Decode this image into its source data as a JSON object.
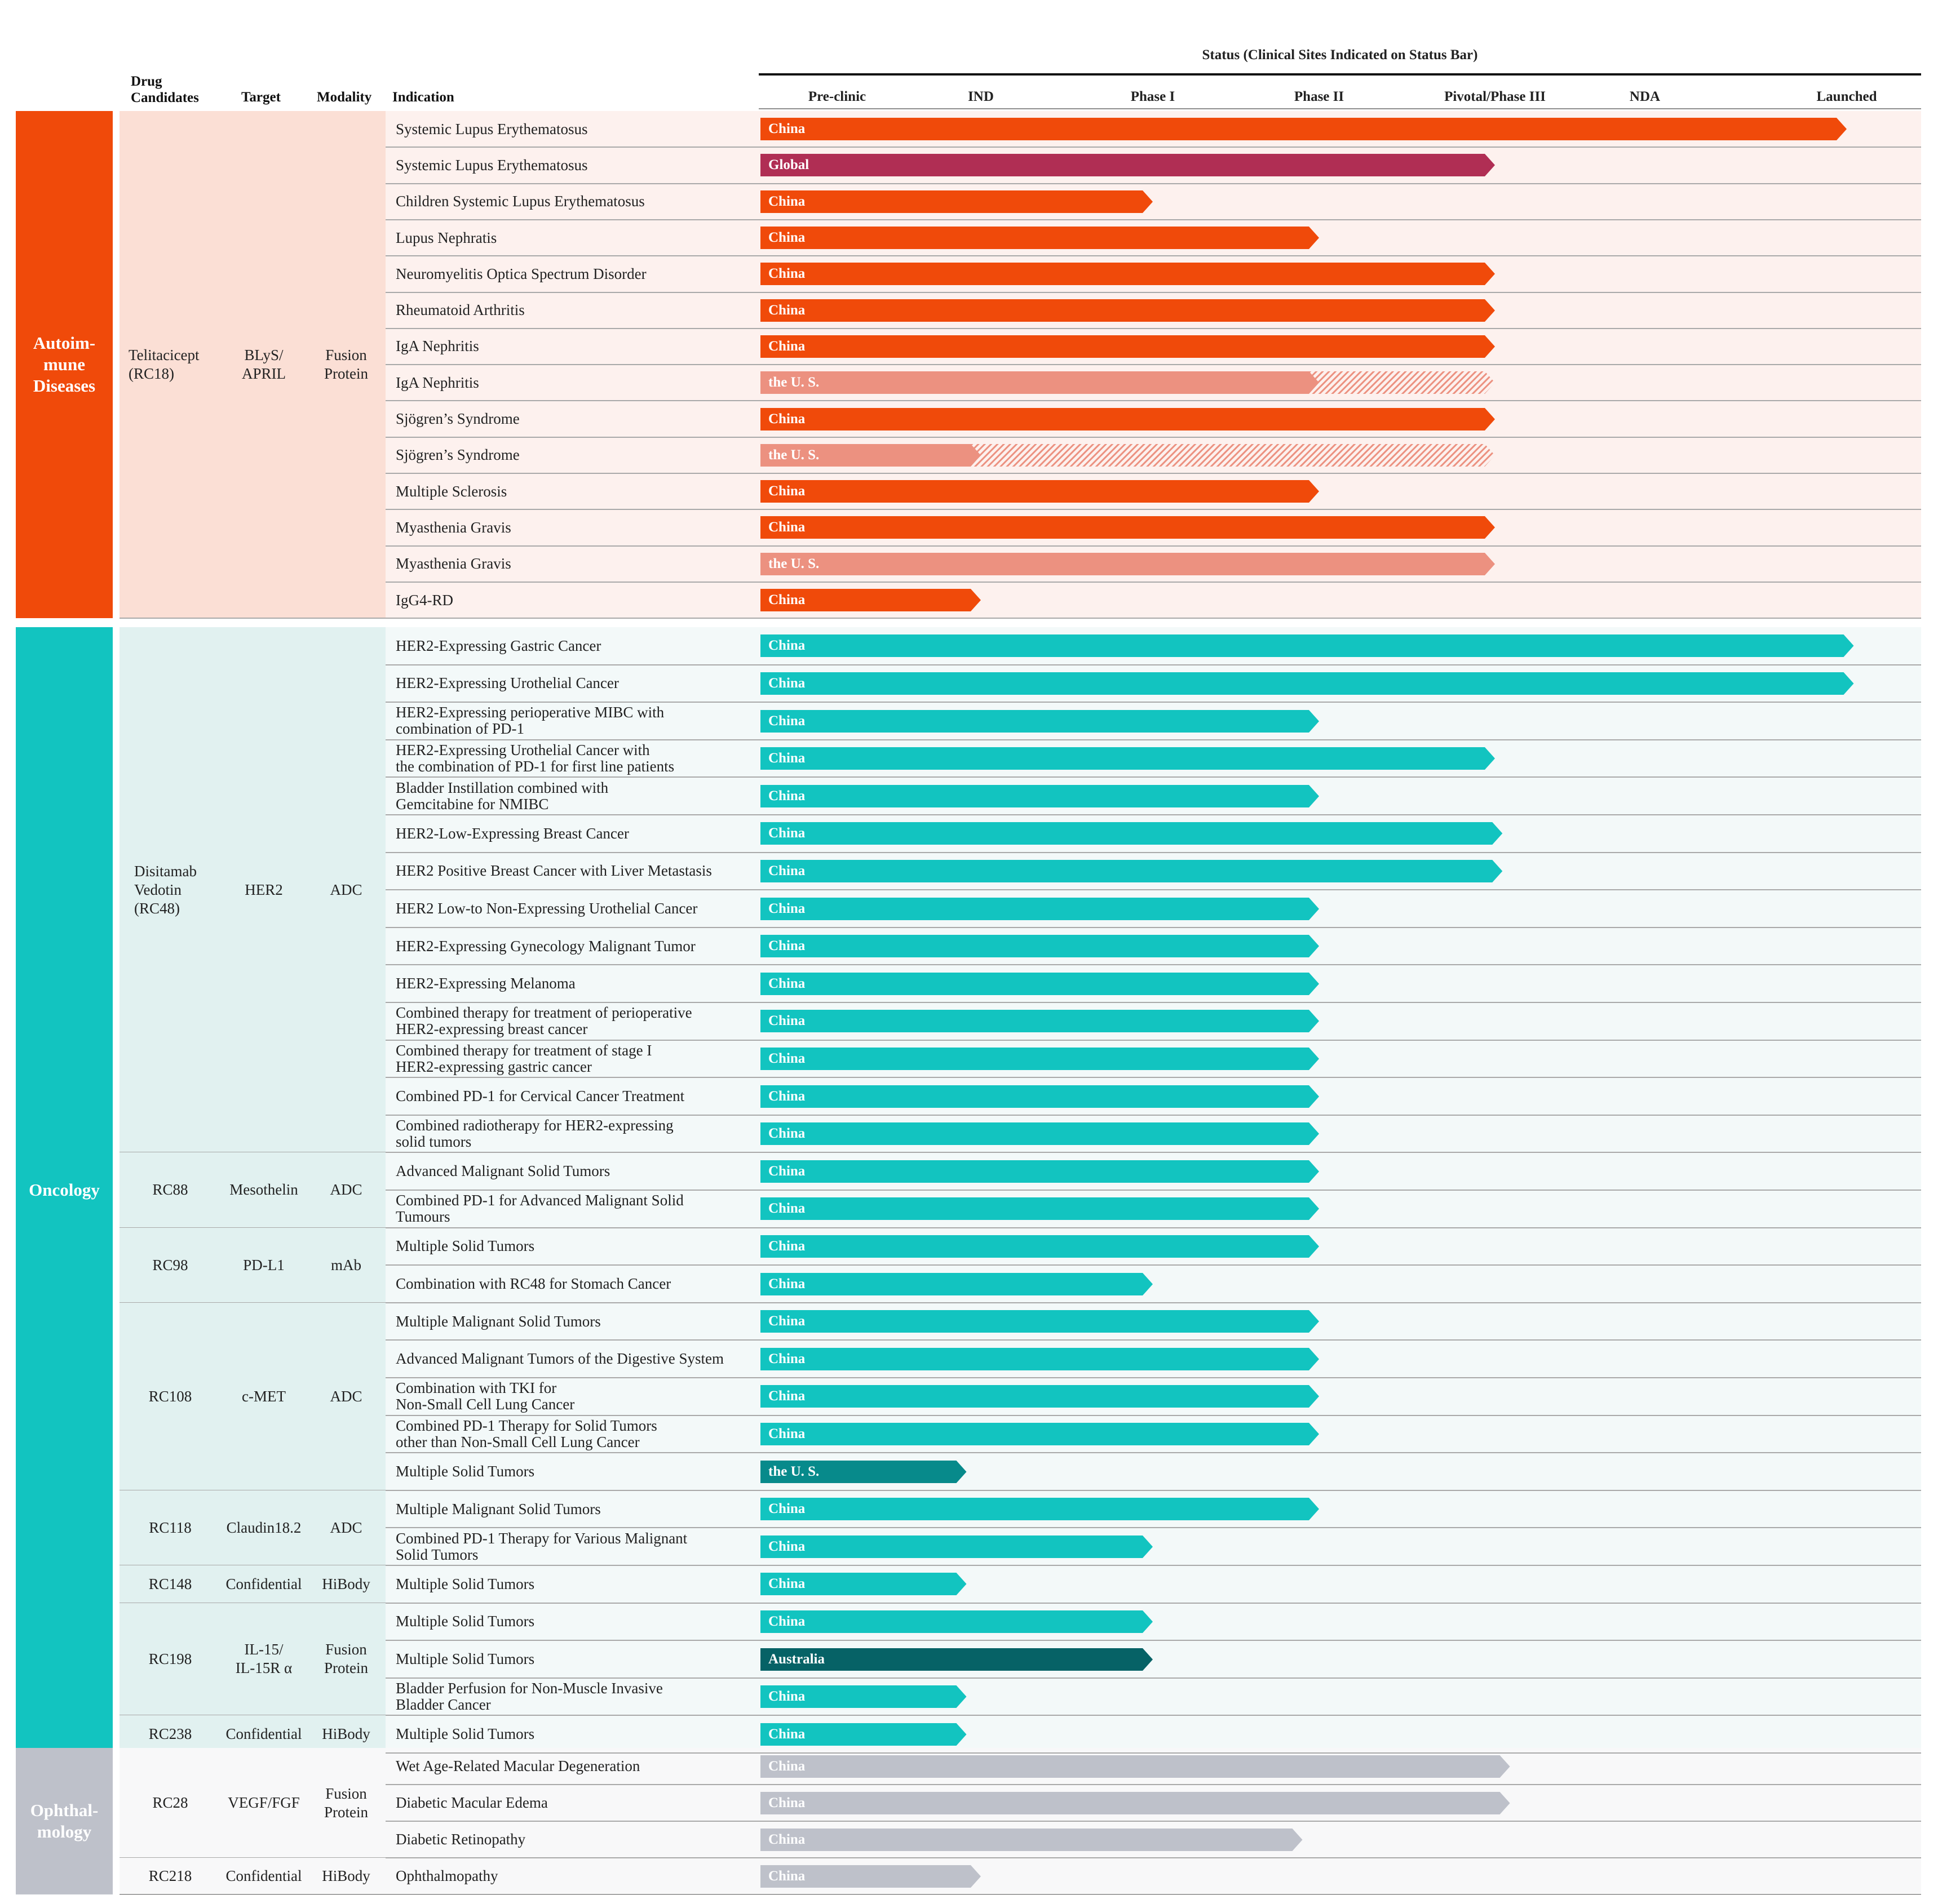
{
  "headers": {
    "drug_candidates": "Drug\nCandidates",
    "target": "Target",
    "modality": "Modality",
    "indication": "Indication",
    "status": "Status (Clinical Sites Indicated on Status Bar)"
  },
  "colors": {
    "autoimmune": "#F04A0A",
    "autoimmune_light": "#EC9180",
    "autoimmune_bg": "#FDF1EE",
    "autoimmune_cell_bg": "#FBDFD5",
    "global": "#B02E54",
    "oncology": "#12C4C0",
    "oncology_dark": "#078A8B",
    "oncology_darkest": "#066266",
    "oncology_bg": "#F3F9F9",
    "oncology_cell_bg": "#E1F1F0",
    "ophthalmology": "#BEC1CA",
    "ophthalmology_bg": "#F8F8F9"
  },
  "chart_data": {
    "type": "bar",
    "stages": [
      "Pre-clinic",
      "IND",
      "Phase I",
      "Phase II",
      "Pivotal/Phase III",
      "NDA",
      "Launched"
    ],
    "categories": [
      {
        "name": "Autoim-\nmune\nDiseases",
        "color": "autoimmune"
      },
      {
        "name": "Oncology",
        "color": "oncology"
      },
      {
        "name": "Ophthal-\nmology",
        "color": "ophthalmology"
      }
    ],
    "drugs": [
      {
        "category": 0,
        "name": "Telitacicept\n(RC18)",
        "target": "BLyS/\nAPRIL",
        "modality": "Fusion\nProtein",
        "rows": [
          0,
          13
        ]
      },
      {
        "category": 1,
        "name": "Disitamab\nVedotin\n(RC48)",
        "target": "HER2",
        "modality": "ADC",
        "rows": [
          14,
          27
        ]
      },
      {
        "category": 1,
        "name": "RC88",
        "target": "Mesothelin",
        "modality": "ADC",
        "rows": [
          28,
          29
        ]
      },
      {
        "category": 1,
        "name": "RC98",
        "target": "PD-L1",
        "modality": "mAb",
        "rows": [
          30,
          31
        ]
      },
      {
        "category": 1,
        "name": "RC108",
        "target": "c-MET",
        "modality": "ADC",
        "rows": [
          32,
          36
        ]
      },
      {
        "category": 1,
        "name": "RC118",
        "target": "Claudin18.2",
        "modality": "ADC",
        "rows": [
          37,
          38
        ]
      },
      {
        "category": 1,
        "name": "RC148",
        "target": "Confidential",
        "modality": "HiBody",
        "rows": [
          39,
          39
        ]
      },
      {
        "category": 1,
        "name": "RC198",
        "target": "IL-15/\nIL-15R α",
        "modality": "Fusion\nProtein",
        "rows": [
          40,
          42
        ]
      },
      {
        "category": 1,
        "name": "RC238",
        "target": "Confidential",
        "modality": "HiBody",
        "rows": [
          43,
          43
        ]
      },
      {
        "category": 2,
        "name": "RC28",
        "target": "VEGF/FGF",
        "modality": "Fusion\nProtein",
        "rows": [
          44,
          46
        ]
      },
      {
        "category": 2,
        "name": "RC218",
        "target": "Confidential",
        "modality": "HiBody",
        "rows": [
          47,
          47
        ]
      }
    ],
    "rows": [
      {
        "indication": "Systemic Lupus Erythematosus",
        "site": "China",
        "stage": 6.0,
        "color": "autoimmune"
      },
      {
        "indication": "Systemic Lupus Erythematosus",
        "site": "Global",
        "stage": 4.0,
        "color": "global"
      },
      {
        "indication": "Children Systemic Lupus Erythematosus",
        "site": "China",
        "stage": 2.0,
        "color": "autoimmune"
      },
      {
        "indication": "Lupus Nephratis",
        "site": "China",
        "stage": 3.0,
        "color": "autoimmune"
      },
      {
        "indication": "Neuromyelitis Optica Spectrum Disorder",
        "site": "China",
        "stage": 4.0,
        "color": "autoimmune"
      },
      {
        "indication": "Rheumatoid Arthritis",
        "site": "China",
        "stage": 4.0,
        "color": "autoimmune"
      },
      {
        "indication": "IgA Nephritis",
        "site": "China",
        "stage": 4.0,
        "color": "autoimmune"
      },
      {
        "indication": "IgA Nephritis",
        "site": "the U. S.",
        "stage": 3.0,
        "hatched_to": 4.0,
        "color": "autoimmune_light"
      },
      {
        "indication": "Sjögren’s Syndrome",
        "site": "China",
        "stage": 4.0,
        "color": "autoimmune"
      },
      {
        "indication": "Sjögren’s Syndrome",
        "site": "the U. S.",
        "stage": 1.0,
        "hatched_to": 4.0,
        "color": "autoimmune_light"
      },
      {
        "indication": "Multiple Sclerosis",
        "site": "China",
        "stage": 3.0,
        "color": "autoimmune"
      },
      {
        "indication": "Myasthenia Gravis",
        "site": "China",
        "stage": 4.0,
        "color": "autoimmune"
      },
      {
        "indication": "Myasthenia Gravis",
        "site": "the U. S.",
        "stage": 4.0,
        "color": "autoimmune_light"
      },
      {
        "indication": "IgG4-RD",
        "site": "China",
        "stage": 1.0,
        "color": "autoimmune"
      },
      {
        "indication": "HER2-Expressing Gastric Cancer",
        "site": "China",
        "stage": 6.05,
        "color": "oncology"
      },
      {
        "indication": "HER2-Expressing Urothelial Cancer",
        "site": "China",
        "stage": 6.05,
        "color": "oncology"
      },
      {
        "indication": "HER2-Expressing perioperative MIBC with\ncombination of PD-1",
        "site": "China",
        "stage": 3.0,
        "color": "oncology"
      },
      {
        "indication": "HER2-Expressing Urothelial Cancer with\nthe combination of PD-1 for first line patients",
        "site": "China",
        "stage": 4.0,
        "color": "oncology"
      },
      {
        "indication": "Bladder Instillation combined with\nGemcitabine for NMIBC",
        "site": "China",
        "stage": 3.0,
        "color": "oncology"
      },
      {
        "indication": "HER2-Low-Expressing Breast Cancer",
        "site": "China",
        "stage": 4.05,
        "color": "oncology"
      },
      {
        "indication": "HER2 Positive Breast Cancer with Liver Metastasis",
        "site": "China",
        "stage": 4.05,
        "color": "oncology"
      },
      {
        "indication": "HER2 Low-to Non-Expressing Urothelial Cancer",
        "site": "China",
        "stage": 3.0,
        "color": "oncology"
      },
      {
        "indication": "HER2-Expressing Gynecology Malignant Tumor",
        "site": "China",
        "stage": 3.0,
        "color": "oncology"
      },
      {
        "indication": "HER2-Expressing Melanoma",
        "site": "China",
        "stage": 3.0,
        "color": "oncology"
      },
      {
        "indication": "Combined therapy for treatment of perioperative\nHER2-expressing breast cancer",
        "site": "China",
        "stage": 3.0,
        "color": "oncology"
      },
      {
        "indication": "Combined therapy for treatment of stage I\nHER2-expressing gastric cancer",
        "site": "China",
        "stage": 3.0,
        "color": "oncology"
      },
      {
        "indication": "Combined PD-1 for Cervical Cancer Treatment",
        "site": "China",
        "stage": 3.0,
        "color": "oncology"
      },
      {
        "indication": "Combined radiotherapy for HER2-expressing\nsolid tumors",
        "site": "China",
        "stage": 3.0,
        "color": "oncology"
      },
      {
        "indication": "Advanced Malignant Solid Tumors",
        "site": "China",
        "stage": 3.0,
        "color": "oncology"
      },
      {
        "indication": "Combined PD-1 for Advanced Malignant Solid\nTumours",
        "site": "China",
        "stage": 3.0,
        "color": "oncology"
      },
      {
        "indication": "Multiple Solid Tumors",
        "site": "China",
        "stage": 3.0,
        "color": "oncology"
      },
      {
        "indication": "Combination with RC48 for Stomach Cancer",
        "site": "China",
        "stage": 2.0,
        "color": "oncology"
      },
      {
        "indication": "Multiple Malignant Solid Tumors",
        "site": "China",
        "stage": 3.0,
        "color": "oncology"
      },
      {
        "indication": "Advanced Malignant Tumors of the Digestive System",
        "site": "China",
        "stage": 3.0,
        "color": "oncology"
      },
      {
        "indication": "Combination with TKI for\nNon-Small Cell Lung Cancer",
        "site": "China",
        "stage": 3.0,
        "color": "oncology"
      },
      {
        "indication": "Combined PD-1 Therapy for Solid Tumors\nother than Non-Small Cell Lung Cancer",
        "site": "China",
        "stage": 3.0,
        "color": "oncology"
      },
      {
        "indication": "Multiple Solid Tumors",
        "site": "the U. S.",
        "stage": 0.9,
        "color": "oncology_dark"
      },
      {
        "indication": "Multiple Malignant Solid Tumors",
        "site": "China",
        "stage": 3.0,
        "color": "oncology"
      },
      {
        "indication": "Combined PD-1 Therapy for Various Malignant\nSolid Tumors",
        "site": "China",
        "stage": 2.0,
        "color": "oncology"
      },
      {
        "indication": "Multiple Solid Tumors",
        "site": "China",
        "stage": 0.9,
        "color": "oncology"
      },
      {
        "indication": "Multiple Solid Tumors",
        "site": "China",
        "stage": 2.0,
        "color": "oncology"
      },
      {
        "indication": "Multiple Solid Tumors",
        "site": "Australia",
        "stage": 2.0,
        "color": "oncology_darkest"
      },
      {
        "indication": "Bladder Perfusion for Non-Muscle Invasive\nBladder Cancer",
        "site": "China",
        "stage": 0.9,
        "color": "oncology"
      },
      {
        "indication": "Multiple Solid Tumors",
        "site": "China",
        "stage": 0.9,
        "color": "oncology"
      },
      {
        "indication": "Wet Age-Related Macular Degeneration",
        "site": "China",
        "stage": 4.1,
        "color": "ophthalmology"
      },
      {
        "indication": "Diabetic Macular Edema",
        "site": "China",
        "stage": 4.1,
        "color": "ophthalmology"
      },
      {
        "indication": "Diabetic Retinopathy",
        "site": "China",
        "stage": 2.9,
        "color": "ophthalmology"
      },
      {
        "indication": "Ophthalmopathy",
        "site": "China",
        "stage": 1.0,
        "color": "ophthalmology"
      }
    ]
  }
}
